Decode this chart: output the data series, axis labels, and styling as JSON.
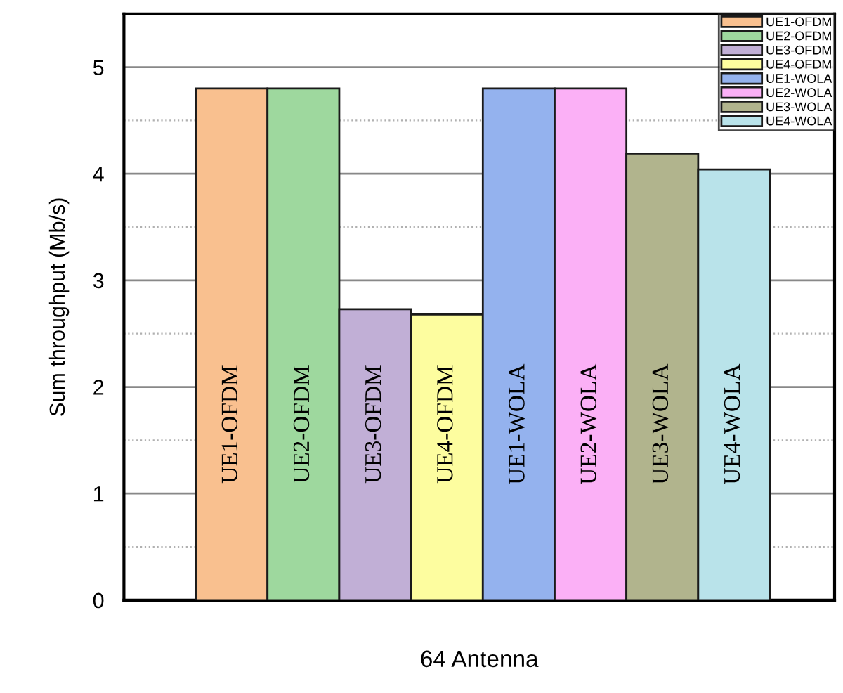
{
  "chart_data": {
    "type": "bar",
    "categories": [
      null
    ],
    "xlabel": "64 Antenna",
    "ylabel": "Sum throughput (Mb/s)",
    "ylim": [
      0,
      5.5
    ],
    "yticks": [
      0,
      {
        "value": 0.5,
        "label": null
      },
      1,
      {
        "value": 1.5,
        "label": null
      },
      2,
      {
        "value": 2.5,
        "label": null
      },
      3,
      {
        "value": 3.5,
        "label": null
      },
      4,
      {
        "value": 4.5,
        "label": null
      },
      5
    ],
    "grid": "y",
    "legend": "top right",
    "data_labels": false,
    "series": [
      {
        "name": "UE1-OFDM",
        "color": "#f9c08f",
        "values": [
          4.8
        ]
      },
      {
        "name": "UE2-OFDM",
        "color": "#9ed89e",
        "values": [
          4.8
        ]
      },
      {
        "name": "UE3-OFDM",
        "color": "#c1afd6",
        "values": [
          2.73
        ]
      },
      {
        "name": "UE4-OFDM",
        "color": "#fdfd9f",
        "values": [
          2.68
        ]
      },
      {
        "name": "UE1-WOLA",
        "color": "#94b2ee",
        "values": [
          4.8
        ]
      },
      {
        "name": "UE2-WOLA",
        "color": "#fbb0f6",
        "values": [
          4.8
        ]
      },
      {
        "name": "UE3-WOLA",
        "color": "#b1b48d",
        "values": [
          4.19
        ]
      },
      {
        "name": "UE4-WOLA",
        "color": "#b9e3ea",
        "values": [
          4.04
        ]
      }
    ]
  }
}
